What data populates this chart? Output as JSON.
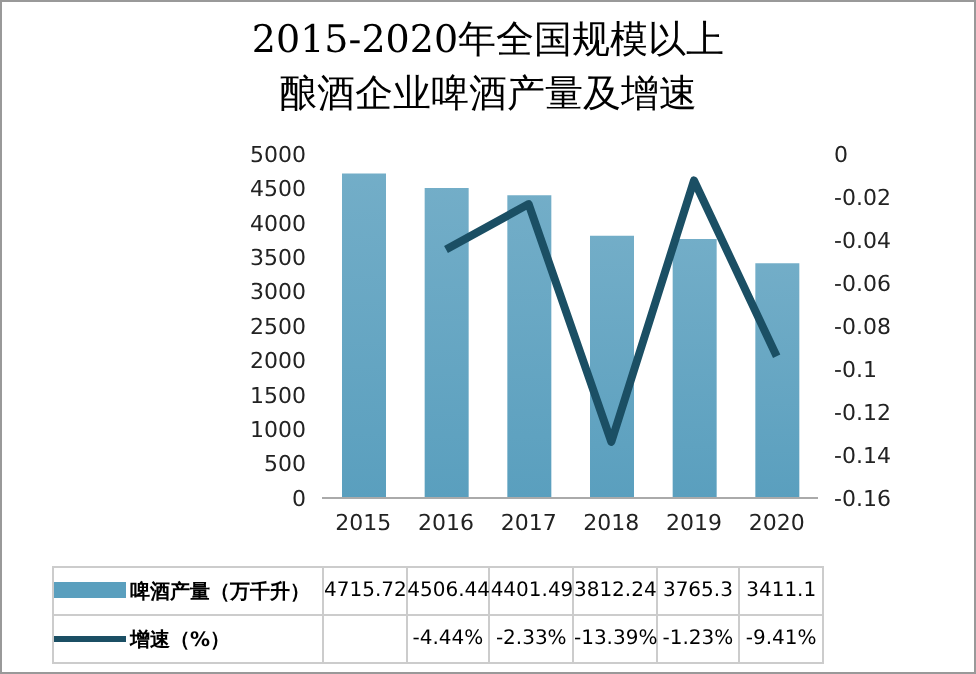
{
  "chart_data": {
    "type": "bar",
    "title": "2015-2020年全国规模以上酿酒企业啤酒产量及增速",
    "categories": [
      "2015",
      "2016",
      "2017",
      "2018",
      "2019",
      "2020"
    ],
    "series": [
      {
        "name": "啤酒产量（万千升）",
        "color": "#5a9fbe",
        "values": [
          4715.72,
          4506.44,
          4401.49,
          3812.24,
          3765.3,
          3411.1
        ],
        "value_labels": [
          "4715.72",
          "4506.44",
          "4401.49",
          "3812.24",
          "3765.3",
          "3411.1"
        ]
      },
      {
        "name": "增速（%）",
        "type": "line",
        "axis": "y2",
        "color": "#1b4f64",
        "values": [
          null,
          -0.0444,
          -0.0233,
          -0.1339,
          -0.0123,
          -0.0941
        ],
        "value_labels": [
          null,
          "-4.44%",
          "-2.33%",
          "-13.39%",
          "-1.23%",
          "-9.41%"
        ]
      }
    ],
    "ylim": [
      0,
      5000
    ],
    "yticks": [
      0,
      500,
      1000,
      1500,
      2000,
      2500,
      3000,
      3500,
      4000,
      4500,
      5000
    ],
    "y2lim": [
      -0.16,
      0
    ],
    "y2ticks": [
      -0.16,
      -0.14,
      -0.12,
      -0.1,
      -0.08,
      -0.06,
      -0.04,
      -0.02,
      0
    ],
    "legend": "bottom",
    "marker": "none",
    "line_style": "solid"
  }
}
